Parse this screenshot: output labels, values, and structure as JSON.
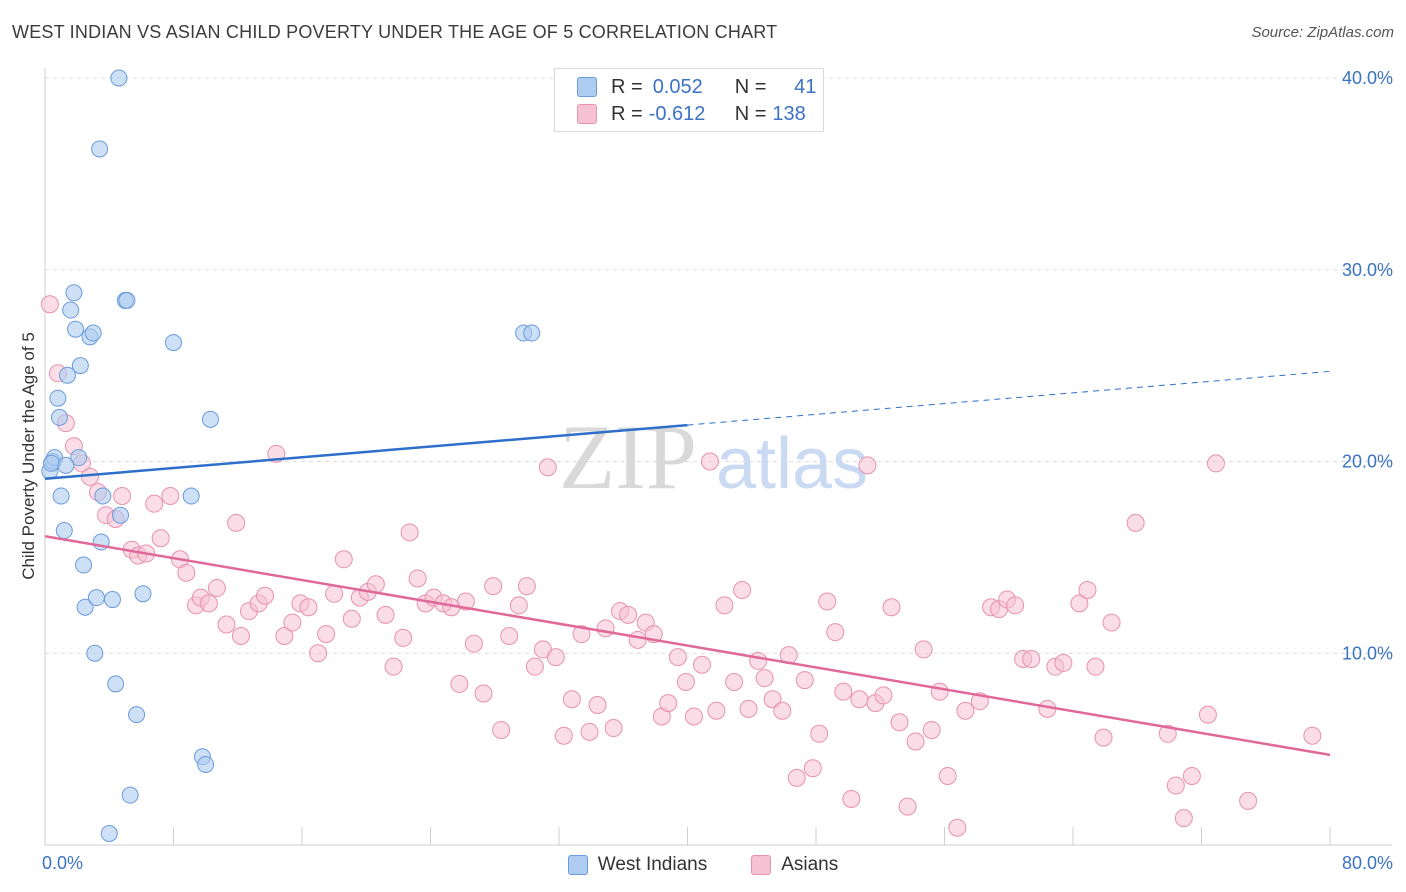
{
  "title": "WEST INDIAN VS ASIAN CHILD POVERTY UNDER THE AGE OF 5 CORRELATION CHART",
  "source": "Source: ZipAtlas.com",
  "watermark": {
    "zip": "ZIP",
    "atlas": "atlas"
  },
  "legend_top": {
    "rows": [
      {
        "r_label": "R =",
        "r_value": "0.052",
        "n_label": "N =",
        "n_value": "41"
      },
      {
        "r_label": "R =",
        "r_value": "-0.612",
        "n_label": "N =",
        "n_value": "138"
      }
    ]
  },
  "legend_bottom": {
    "west_indians": "West Indians",
    "asians": "Asians"
  },
  "colors": {
    "west_indians_fill": "#aecbf0",
    "west_indians_stroke": "#6a9bdc",
    "west_indians_line": "#2d6fc9",
    "asians_fill": "#f6c1d2",
    "asians_stroke": "#e891b0",
    "asians_line": "#e0699a",
    "axis_text": "#3b73c4",
    "grid": "#dcdcdc"
  },
  "chart_data": {
    "type": "scatter",
    "title": "WEST INDIAN VS ASIAN CHILD POVERTY UNDER THE AGE OF 5 CORRELATION CHART",
    "xlabel": "",
    "ylabel": "Child Poverty Under the Age of 5",
    "xlim": [
      0,
      80
    ],
    "ylim": [
      0,
      40
    ],
    "x_tick_labels": [
      {
        "value": 0,
        "label": "0.0%"
      },
      {
        "value": 80,
        "label": "80.0%"
      }
    ],
    "y_tick_labels": [
      {
        "value": 10,
        "label": "10.0%"
      },
      {
        "value": 20,
        "label": "20.0%"
      },
      {
        "value": 30,
        "label": "30.0%"
      },
      {
        "value": 40,
        "label": "40.0%"
      }
    ],
    "grid": true,
    "legend": "bottom",
    "series": [
      {
        "name": "West Indians",
        "points": [
          [
            0.3,
            19.5
          ],
          [
            0.5,
            20.0
          ],
          [
            0.6,
            20.2
          ],
          [
            0.8,
            23.3
          ],
          [
            0.9,
            22.3
          ],
          [
            1.0,
            18.2
          ],
          [
            1.2,
            16.4
          ],
          [
            1.4,
            24.5
          ],
          [
            1.6,
            27.9
          ],
          [
            1.8,
            28.8
          ],
          [
            1.9,
            26.9
          ],
          [
            2.1,
            20.2
          ],
          [
            2.2,
            25.0
          ],
          [
            2.4,
            14.6
          ],
          [
            2.5,
            12.4
          ],
          [
            2.8,
            26.5
          ],
          [
            3.0,
            26.7
          ],
          [
            3.1,
            10.0
          ],
          [
            3.2,
            12.9
          ],
          [
            3.4,
            36.3
          ],
          [
            3.5,
            15.8
          ],
          [
            3.6,
            18.2
          ],
          [
            4.0,
            0.6
          ],
          [
            4.2,
            12.8
          ],
          [
            4.4,
            8.4
          ],
          [
            4.6,
            40.0
          ],
          [
            4.7,
            17.2
          ],
          [
            5.0,
            28.4
          ],
          [
            5.1,
            28.4
          ],
          [
            5.3,
            2.6
          ],
          [
            5.7,
            6.8
          ],
          [
            6.1,
            13.1
          ],
          [
            8.0,
            26.2
          ],
          [
            9.1,
            18.2
          ],
          [
            9.8,
            4.6
          ],
          [
            10.0,
            4.2
          ],
          [
            10.3,
            22.2
          ],
          [
            29.8,
            26.7
          ],
          [
            30.3,
            26.7
          ],
          [
            0.4,
            19.9
          ],
          [
            1.3,
            19.8
          ]
        ]
      },
      {
        "name": "Asians",
        "points": [
          [
            0.3,
            28.2
          ],
          [
            0.8,
            24.6
          ],
          [
            1.3,
            22.0
          ],
          [
            1.8,
            20.8
          ],
          [
            2.3,
            19.9
          ],
          [
            2.8,
            19.2
          ],
          [
            3.3,
            18.4
          ],
          [
            3.8,
            17.2
          ],
          [
            4.4,
            17.0
          ],
          [
            4.8,
            18.2
          ],
          [
            5.4,
            15.4
          ],
          [
            5.8,
            15.1
          ],
          [
            6.3,
            15.2
          ],
          [
            6.8,
            17.8
          ],
          [
            7.2,
            16.0
          ],
          [
            7.8,
            18.2
          ],
          [
            8.4,
            14.9
          ],
          [
            8.8,
            14.2
          ],
          [
            9.4,
            12.5
          ],
          [
            9.7,
            12.9
          ],
          [
            10.2,
            12.6
          ],
          [
            10.7,
            13.4
          ],
          [
            11.3,
            11.5
          ],
          [
            11.9,
            16.8
          ],
          [
            12.2,
            10.9
          ],
          [
            12.7,
            12.2
          ],
          [
            13.3,
            12.6
          ],
          [
            13.7,
            13.0
          ],
          [
            14.4,
            20.4
          ],
          [
            14.9,
            10.9
          ],
          [
            15.4,
            11.6
          ],
          [
            15.9,
            12.6
          ],
          [
            16.4,
            12.4
          ],
          [
            17.0,
            10.0
          ],
          [
            17.5,
            11.0
          ],
          [
            18.0,
            13.1
          ],
          [
            18.6,
            14.9
          ],
          [
            19.1,
            11.8
          ],
          [
            19.6,
            12.9
          ],
          [
            20.1,
            13.2
          ],
          [
            20.6,
            13.6
          ],
          [
            21.2,
            12.0
          ],
          [
            21.7,
            9.3
          ],
          [
            22.3,
            10.8
          ],
          [
            22.7,
            16.3
          ],
          [
            23.2,
            13.9
          ],
          [
            23.7,
            12.6
          ],
          [
            24.2,
            12.9
          ],
          [
            24.8,
            12.6
          ],
          [
            25.3,
            12.4
          ],
          [
            25.8,
            8.4
          ],
          [
            26.2,
            12.7
          ],
          [
            26.7,
            10.5
          ],
          [
            27.3,
            7.9
          ],
          [
            27.9,
            13.5
          ],
          [
            28.4,
            6.0
          ],
          [
            28.9,
            10.9
          ],
          [
            29.5,
            12.5
          ],
          [
            30.0,
            13.5
          ],
          [
            30.5,
            9.3
          ],
          [
            31.0,
            10.2
          ],
          [
            31.3,
            19.7
          ],
          [
            31.8,
            9.8
          ],
          [
            32.3,
            5.7
          ],
          [
            32.8,
            7.6
          ],
          [
            33.4,
            11.0
          ],
          [
            33.9,
            5.9
          ],
          [
            34.4,
            7.3
          ],
          [
            34.9,
            11.3
          ],
          [
            35.4,
            6.1
          ],
          [
            35.8,
            12.2
          ],
          [
            36.3,
            12.0
          ],
          [
            36.9,
            10.7
          ],
          [
            37.4,
            11.6
          ],
          [
            37.9,
            11.0
          ],
          [
            38.4,
            6.7
          ],
          [
            38.8,
            7.4
          ],
          [
            39.4,
            9.8
          ],
          [
            39.9,
            8.5
          ],
          [
            40.4,
            6.7
          ],
          [
            40.9,
            9.4
          ],
          [
            41.4,
            20.0
          ],
          [
            41.8,
            7.0
          ],
          [
            42.3,
            12.5
          ],
          [
            42.9,
            8.5
          ],
          [
            43.4,
            13.3
          ],
          [
            43.8,
            7.1
          ],
          [
            44.4,
            9.6
          ],
          [
            44.8,
            8.7
          ],
          [
            45.3,
            7.6
          ],
          [
            45.9,
            7.0
          ],
          [
            46.3,
            9.9
          ],
          [
            46.8,
            3.5
          ],
          [
            47.3,
            8.6
          ],
          [
            47.8,
            4.0
          ],
          [
            48.2,
            5.8
          ],
          [
            48.7,
            12.7
          ],
          [
            49.2,
            11.1
          ],
          [
            49.7,
            8.0
          ],
          [
            50.2,
            2.4
          ],
          [
            50.7,
            7.6
          ],
          [
            51.2,
            19.8
          ],
          [
            51.7,
            7.4
          ],
          [
            52.2,
            7.8
          ],
          [
            52.7,
            12.4
          ],
          [
            53.2,
            6.4
          ],
          [
            53.7,
            2.0
          ],
          [
            54.2,
            5.4
          ],
          [
            54.7,
            10.2
          ],
          [
            55.2,
            6.0
          ],
          [
            55.7,
            8.0
          ],
          [
            56.2,
            3.6
          ],
          [
            56.8,
            0.9
          ],
          [
            57.3,
            7.0
          ],
          [
            58.2,
            7.5
          ],
          [
            58.9,
            12.4
          ],
          [
            59.4,
            12.3
          ],
          [
            59.9,
            12.8
          ],
          [
            60.4,
            12.5
          ],
          [
            60.9,
            9.7
          ],
          [
            61.4,
            9.7
          ],
          [
            62.4,
            7.1
          ],
          [
            62.9,
            9.3
          ],
          [
            63.4,
            9.5
          ],
          [
            64.4,
            12.6
          ],
          [
            64.9,
            13.3
          ],
          [
            65.4,
            9.3
          ],
          [
            65.9,
            5.6
          ],
          [
            66.4,
            11.6
          ],
          [
            67.9,
            16.8
          ],
          [
            69.9,
            5.8
          ],
          [
            70.4,
            3.1
          ],
          [
            70.9,
            1.4
          ],
          [
            71.4,
            3.6
          ],
          [
            72.4,
            6.8
          ],
          [
            72.9,
            19.9
          ],
          [
            74.9,
            2.3
          ],
          [
            78.9,
            5.7
          ]
        ]
      }
    ],
    "trend_lines": [
      {
        "series": "West Indians",
        "x_solid": [
          0,
          40
        ],
        "y_solid": [
          19.1,
          21.9
        ],
        "x_dashed": [
          40,
          80
        ],
        "y_dashed": [
          21.9,
          24.7
        ]
      },
      {
        "series": "Asians",
        "x": [
          0,
          80
        ],
        "y": [
          16.1,
          4.7
        ]
      }
    ]
  }
}
